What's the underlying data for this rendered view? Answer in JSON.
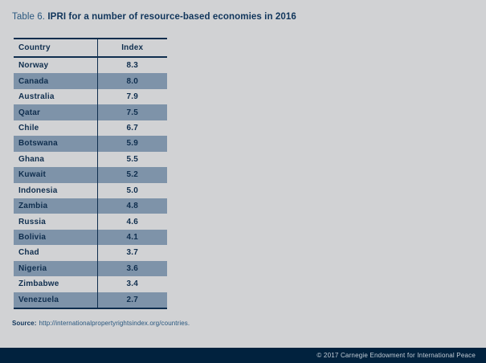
{
  "title": {
    "prefix": "Table 6. ",
    "text": "IPRI for a number of resource-based economies in 2016"
  },
  "table": {
    "headers": {
      "country": "Country",
      "index": "Index"
    },
    "rows": [
      {
        "country": "Norway",
        "index": "8.3"
      },
      {
        "country": "Canada",
        "index": "8.0"
      },
      {
        "country": "Australia",
        "index": "7.9"
      },
      {
        "country": "Qatar",
        "index": "7.5"
      },
      {
        "country": "Chile",
        "index": "6.7"
      },
      {
        "country": "Botswana",
        "index": "5.9"
      },
      {
        "country": "Ghana",
        "index": "5.5"
      },
      {
        "country": "Kuwait",
        "index": "5.2"
      },
      {
        "country": "Indonesia",
        "index": "5.0"
      },
      {
        "country": "Zambia",
        "index": "4.8"
      },
      {
        "country": "Russia",
        "index": "4.6"
      },
      {
        "country": "Bolivia",
        "index": "4.1"
      },
      {
        "country": "Chad",
        "index": "3.7"
      },
      {
        "country": "Nigeria",
        "index": "3.6"
      },
      {
        "country": "Zimbabwe",
        "index": "3.4"
      },
      {
        "country": "Venezuela",
        "index": "2.7"
      }
    ]
  },
  "source": {
    "label": "Source:",
    "url_text": "http://internationalpropertyrightsindex.org/countries."
  },
  "footer": {
    "copyright": "© 2017 Carnegie Endowment for International Peace"
  },
  "colors": {
    "background": "#d1d2d4",
    "row_shaded": "#7e93a9",
    "navy_text": "#0f2e4e",
    "footer_bar": "#01223e",
    "footer_text": "#c4cdd7"
  }
}
